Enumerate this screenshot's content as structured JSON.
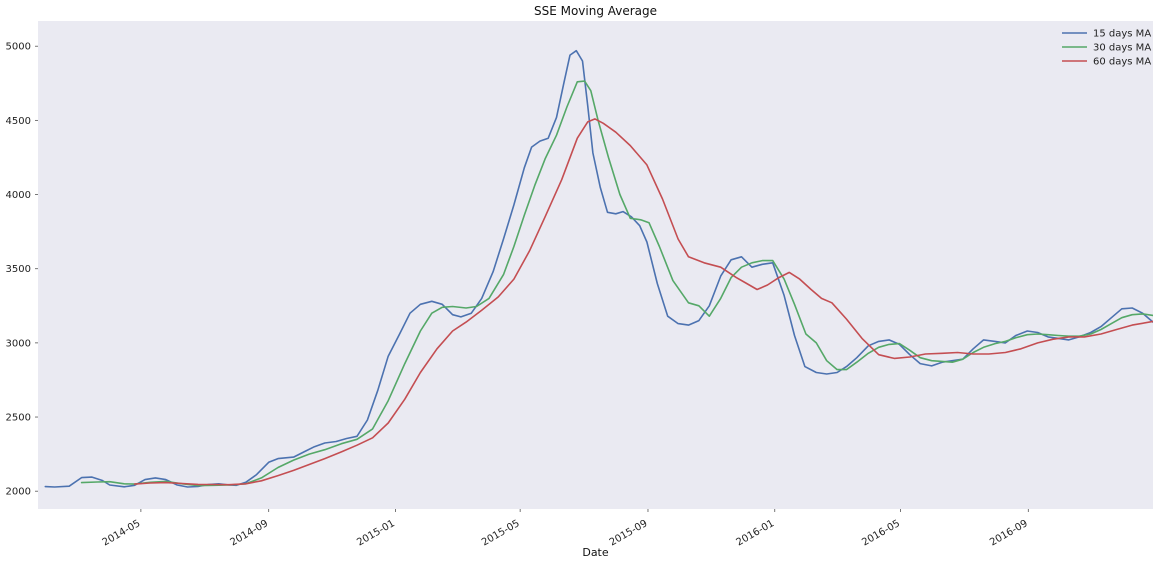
{
  "chart_data": {
    "type": "line",
    "title": "SSE Moving Average",
    "xlabel": "Date",
    "ylabel": "",
    "xlim": [
      "2014-01-22",
      "2016-12-30"
    ],
    "ylim": [
      1880,
      5170
    ],
    "grid": false,
    "legend_position": "top-right",
    "x_ticks": [
      "2014-05",
      "2014-09",
      "2015-01",
      "2015-05",
      "2015-09",
      "2016-01",
      "2016-05",
      "2016-09"
    ],
    "y_ticks": [
      2000,
      2500,
      3000,
      3500,
      4000,
      4500,
      5000
    ],
    "colors": {
      "background": "#EAEAF2",
      "15": "#4C72B0",
      "30": "#55A868",
      "60": "#C44E52"
    },
    "series": [
      {
        "name": "15 days MA",
        "color": "#4C72B0",
        "points": [
          [
            "2014-01-29",
            2031
          ],
          [
            "2014-02-07",
            2028
          ],
          [
            "2014-02-21",
            2034
          ],
          [
            "2014-03-05",
            2092
          ],
          [
            "2014-03-15",
            2095
          ],
          [
            "2014-03-25",
            2072
          ],
          [
            "2014-04-01",
            2042
          ],
          [
            "2014-04-15",
            2030
          ],
          [
            "2014-04-25",
            2040
          ],
          [
            "2014-05-05",
            2078
          ],
          [
            "2014-05-15",
            2090
          ],
          [
            "2014-05-25",
            2078
          ],
          [
            "2014-06-05",
            2042
          ],
          [
            "2014-06-15",
            2028
          ],
          [
            "2014-06-25",
            2032
          ],
          [
            "2014-07-05",
            2045
          ],
          [
            "2014-07-15",
            2050
          ],
          [
            "2014-07-25",
            2042
          ],
          [
            "2014-08-01",
            2040
          ],
          [
            "2014-08-10",
            2060
          ],
          [
            "2014-08-20",
            2110
          ],
          [
            "2014-09-01",
            2195
          ],
          [
            "2014-09-10",
            2220
          ],
          [
            "2014-09-25",
            2230
          ],
          [
            "2014-10-05",
            2265
          ],
          [
            "2014-10-15",
            2300
          ],
          [
            "2014-10-25",
            2325
          ],
          [
            "2014-11-05",
            2335
          ],
          [
            "2014-11-15",
            2355
          ],
          [
            "2014-11-25",
            2370
          ],
          [
            "2014-12-05",
            2480
          ],
          [
            "2014-12-15",
            2680
          ],
          [
            "2014-12-25",
            2910
          ],
          [
            "2015-01-05",
            3060
          ],
          [
            "2015-01-15",
            3200
          ],
          [
            "2015-01-25",
            3260
          ],
          [
            "2015-02-05",
            3280
          ],
          [
            "2015-02-15",
            3260
          ],
          [
            "2015-02-25",
            3190
          ],
          [
            "2015-03-05",
            3175
          ],
          [
            "2015-03-15",
            3200
          ],
          [
            "2015-03-25",
            3300
          ],
          [
            "2015-04-05",
            3480
          ],
          [
            "2015-04-15",
            3700
          ],
          [
            "2015-04-25",
            3930
          ],
          [
            "2015-05-05",
            4180
          ],
          [
            "2015-05-12",
            4320
          ],
          [
            "2015-05-20",
            4360
          ],
          [
            "2015-05-28",
            4380
          ],
          [
            "2015-06-05",
            4520
          ],
          [
            "2015-06-12",
            4750
          ],
          [
            "2015-06-18",
            4940
          ],
          [
            "2015-06-24",
            4970
          ],
          [
            "2015-06-30",
            4900
          ],
          [
            "2015-07-05",
            4600
          ],
          [
            "2015-07-10",
            4280
          ],
          [
            "2015-07-17",
            4050
          ],
          [
            "2015-07-24",
            3880
          ],
          [
            "2015-08-01",
            3870
          ],
          [
            "2015-08-08",
            3885
          ],
          [
            "2015-08-16",
            3850
          ],
          [
            "2015-08-24",
            3790
          ],
          [
            "2015-08-31",
            3680
          ],
          [
            "2015-09-10",
            3400
          ],
          [
            "2015-09-20",
            3180
          ],
          [
            "2015-09-30",
            3130
          ],
          [
            "2015-10-10",
            3120
          ],
          [
            "2015-10-20",
            3150
          ],
          [
            "2015-10-30",
            3250
          ],
          [
            "2015-11-10",
            3450
          ],
          [
            "2015-11-20",
            3560
          ],
          [
            "2015-11-30",
            3580
          ],
          [
            "2015-12-10",
            3510
          ],
          [
            "2015-12-20",
            3530
          ],
          [
            "2015-12-30",
            3540
          ],
          [
            "2016-01-10",
            3320
          ],
          [
            "2016-01-20",
            3050
          ],
          [
            "2016-01-30",
            2840
          ],
          [
            "2016-02-10",
            2800
          ],
          [
            "2016-02-20",
            2790
          ],
          [
            "2016-03-01",
            2800
          ],
          [
            "2016-03-10",
            2840
          ],
          [
            "2016-03-20",
            2900
          ],
          [
            "2016-03-31",
            2980
          ],
          [
            "2016-04-10",
            3010
          ],
          [
            "2016-04-20",
            3020
          ],
          [
            "2016-04-30",
            2990
          ],
          [
            "2016-05-10",
            2920
          ],
          [
            "2016-05-20",
            2860
          ],
          [
            "2016-05-31",
            2845
          ],
          [
            "2016-06-10",
            2870
          ],
          [
            "2016-06-20",
            2880
          ],
          [
            "2016-06-30",
            2890
          ],
          [
            "2016-07-10",
            2960
          ],
          [
            "2016-07-20",
            3020
          ],
          [
            "2016-07-31",
            3010
          ],
          [
            "2016-08-10",
            3000
          ],
          [
            "2016-08-20",
            3050
          ],
          [
            "2016-08-31",
            3080
          ],
          [
            "2016-09-10",
            3070
          ],
          [
            "2016-09-20",
            3040
          ],
          [
            "2016-09-30",
            3030
          ],
          [
            "2016-10-10",
            3020
          ],
          [
            "2016-10-20",
            3040
          ],
          [
            "2016-10-31",
            3070
          ],
          [
            "2016-11-10",
            3110
          ],
          [
            "2016-11-20",
            3170
          ],
          [
            "2016-11-30",
            3230
          ],
          [
            "2016-12-10",
            3235
          ],
          [
            "2016-12-20",
            3200
          ],
          [
            "2016-12-30",
            3140
          ]
        ]
      },
      {
        "name": "30 days MA",
        "color": "#55A868",
        "points": [
          [
            "2014-03-05",
            2058
          ],
          [
            "2014-03-20",
            2062
          ],
          [
            "2014-04-01",
            2064
          ],
          [
            "2014-04-15",
            2050
          ],
          [
            "2014-04-25",
            2048
          ],
          [
            "2014-05-10",
            2060
          ],
          [
            "2014-05-25",
            2066
          ],
          [
            "2014-06-10",
            2050
          ],
          [
            "2014-06-25",
            2038
          ],
          [
            "2014-07-10",
            2040
          ],
          [
            "2014-07-25",
            2042
          ],
          [
            "2014-08-10",
            2050
          ],
          [
            "2014-08-25",
            2090
          ],
          [
            "2014-09-10",
            2160
          ],
          [
            "2014-09-25",
            2210
          ],
          [
            "2014-10-10",
            2250
          ],
          [
            "2014-10-25",
            2280
          ],
          [
            "2014-11-10",
            2320
          ],
          [
            "2014-11-25",
            2350
          ],
          [
            "2014-12-10",
            2420
          ],
          [
            "2014-12-25",
            2610
          ],
          [
            "2015-01-10",
            2860
          ],
          [
            "2015-01-25",
            3080
          ],
          [
            "2015-02-05",
            3200
          ],
          [
            "2015-02-15",
            3240
          ],
          [
            "2015-02-25",
            3245
          ],
          [
            "2015-03-10",
            3235
          ],
          [
            "2015-03-20",
            3245
          ],
          [
            "2015-04-01",
            3300
          ],
          [
            "2015-04-15",
            3460
          ],
          [
            "2015-04-25",
            3650
          ],
          [
            "2015-05-05",
            3860
          ],
          [
            "2015-05-15",
            4060
          ],
          [
            "2015-05-25",
            4240
          ],
          [
            "2015-06-05",
            4400
          ],
          [
            "2015-06-15",
            4590
          ],
          [
            "2015-06-25",
            4760
          ],
          [
            "2015-07-02",
            4765
          ],
          [
            "2015-07-08",
            4700
          ],
          [
            "2015-07-15",
            4500
          ],
          [
            "2015-07-25",
            4250
          ],
          [
            "2015-08-05",
            4000
          ],
          [
            "2015-08-15",
            3840
          ],
          [
            "2015-08-25",
            3830
          ],
          [
            "2015-09-02",
            3810
          ],
          [
            "2015-09-12",
            3650
          ],
          [
            "2015-09-25",
            3420
          ],
          [
            "2015-10-10",
            3270
          ],
          [
            "2015-10-20",
            3250
          ],
          [
            "2015-10-30",
            3180
          ],
          [
            "2015-11-10",
            3300
          ],
          [
            "2015-11-20",
            3440
          ],
          [
            "2015-11-30",
            3510
          ],
          [
            "2015-12-10",
            3540
          ],
          [
            "2015-12-20",
            3555
          ],
          [
            "2015-12-30",
            3555
          ],
          [
            "2016-01-10",
            3430
          ],
          [
            "2016-01-20",
            3260
          ],
          [
            "2016-01-31",
            3060
          ],
          [
            "2016-02-10",
            3000
          ],
          [
            "2016-02-20",
            2880
          ],
          [
            "2016-03-01",
            2820
          ],
          [
            "2016-03-10",
            2820
          ],
          [
            "2016-03-20",
            2870
          ],
          [
            "2016-03-31",
            2930
          ],
          [
            "2016-04-10",
            2970
          ],
          [
            "2016-04-20",
            2990
          ],
          [
            "2016-04-30",
            2995
          ],
          [
            "2016-05-10",
            2950
          ],
          [
            "2016-05-20",
            2900
          ],
          [
            "2016-05-31",
            2880
          ],
          [
            "2016-06-10",
            2875
          ],
          [
            "2016-06-20",
            2870
          ],
          [
            "2016-06-30",
            2890
          ],
          [
            "2016-07-10",
            2935
          ],
          [
            "2016-07-20",
            2970
          ],
          [
            "2016-07-31",
            2995
          ],
          [
            "2016-08-10",
            3010
          ],
          [
            "2016-08-20",
            3035
          ],
          [
            "2016-08-31",
            3055
          ],
          [
            "2016-09-10",
            3060
          ],
          [
            "2016-09-20",
            3055
          ],
          [
            "2016-09-30",
            3050
          ],
          [
            "2016-10-10",
            3045
          ],
          [
            "2016-10-20",
            3045
          ],
          [
            "2016-10-31",
            3060
          ],
          [
            "2016-11-10",
            3090
          ],
          [
            "2016-11-20",
            3130
          ],
          [
            "2016-11-30",
            3170
          ],
          [
            "2016-12-10",
            3190
          ],
          [
            "2016-12-20",
            3195
          ],
          [
            "2016-12-30",
            3185
          ]
        ]
      },
      {
        "name": "60 days MA",
        "color": "#C44E52",
        "points": [
          [
            "2014-04-25",
            2048
          ],
          [
            "2014-05-10",
            2055
          ],
          [
            "2014-05-25",
            2058
          ],
          [
            "2014-06-10",
            2052
          ],
          [
            "2014-06-25",
            2046
          ],
          [
            "2014-07-10",
            2045
          ],
          [
            "2014-07-25",
            2044
          ],
          [
            "2014-08-10",
            2050
          ],
          [
            "2014-08-25",
            2070
          ],
          [
            "2014-09-10",
            2105
          ],
          [
            "2014-09-25",
            2140
          ],
          [
            "2014-10-10",
            2180
          ],
          [
            "2014-10-25",
            2220
          ],
          [
            "2014-11-10",
            2265
          ],
          [
            "2014-11-25",
            2310
          ],
          [
            "2014-12-10",
            2360
          ],
          [
            "2014-12-25",
            2460
          ],
          [
            "2015-01-10",
            2620
          ],
          [
            "2015-01-25",
            2800
          ],
          [
            "2015-02-10",
            2960
          ],
          [
            "2015-02-25",
            3080
          ],
          [
            "2015-03-10",
            3140
          ],
          [
            "2015-03-25",
            3220
          ],
          [
            "2015-04-10",
            3310
          ],
          [
            "2015-04-25",
            3430
          ],
          [
            "2015-05-10",
            3620
          ],
          [
            "2015-05-25",
            3850
          ],
          [
            "2015-06-10",
            4100
          ],
          [
            "2015-06-25",
            4380
          ],
          [
            "2015-07-05",
            4490
          ],
          [
            "2015-07-12",
            4510
          ],
          [
            "2015-07-20",
            4480
          ],
          [
            "2015-08-01",
            4420
          ],
          [
            "2015-08-15",
            4330
          ],
          [
            "2015-08-31",
            4200
          ],
          [
            "2015-09-15",
            3970
          ],
          [
            "2015-09-30",
            3700
          ],
          [
            "2015-10-10",
            3580
          ],
          [
            "2015-10-25",
            3540
          ],
          [
            "2015-11-10",
            3510
          ],
          [
            "2015-11-25",
            3440
          ],
          [
            "2015-12-05",
            3400
          ],
          [
            "2015-12-15",
            3360
          ],
          [
            "2015-12-25",
            3390
          ],
          [
            "2016-01-05",
            3440
          ],
          [
            "2016-01-15",
            3475
          ],
          [
            "2016-01-25",
            3430
          ],
          [
            "2016-02-05",
            3360
          ],
          [
            "2016-02-15",
            3300
          ],
          [
            "2016-02-25",
            3270
          ],
          [
            "2016-03-10",
            3160
          ],
          [
            "2016-03-25",
            3030
          ],
          [
            "2016-04-10",
            2920
          ],
          [
            "2016-04-25",
            2895
          ],
          [
            "2016-05-10",
            2905
          ],
          [
            "2016-05-25",
            2925
          ],
          [
            "2016-06-10",
            2930
          ],
          [
            "2016-06-25",
            2935
          ],
          [
            "2016-07-10",
            2925
          ],
          [
            "2016-07-25",
            2925
          ],
          [
            "2016-08-10",
            2935
          ],
          [
            "2016-08-25",
            2960
          ],
          [
            "2016-09-10",
            3000
          ],
          [
            "2016-09-25",
            3025
          ],
          [
            "2016-10-10",
            3040
          ],
          [
            "2016-10-25",
            3040
          ],
          [
            "2016-11-10",
            3060
          ],
          [
            "2016-11-25",
            3090
          ],
          [
            "2016-12-10",
            3120
          ],
          [
            "2016-12-30",
            3145
          ]
        ]
      }
    ]
  }
}
